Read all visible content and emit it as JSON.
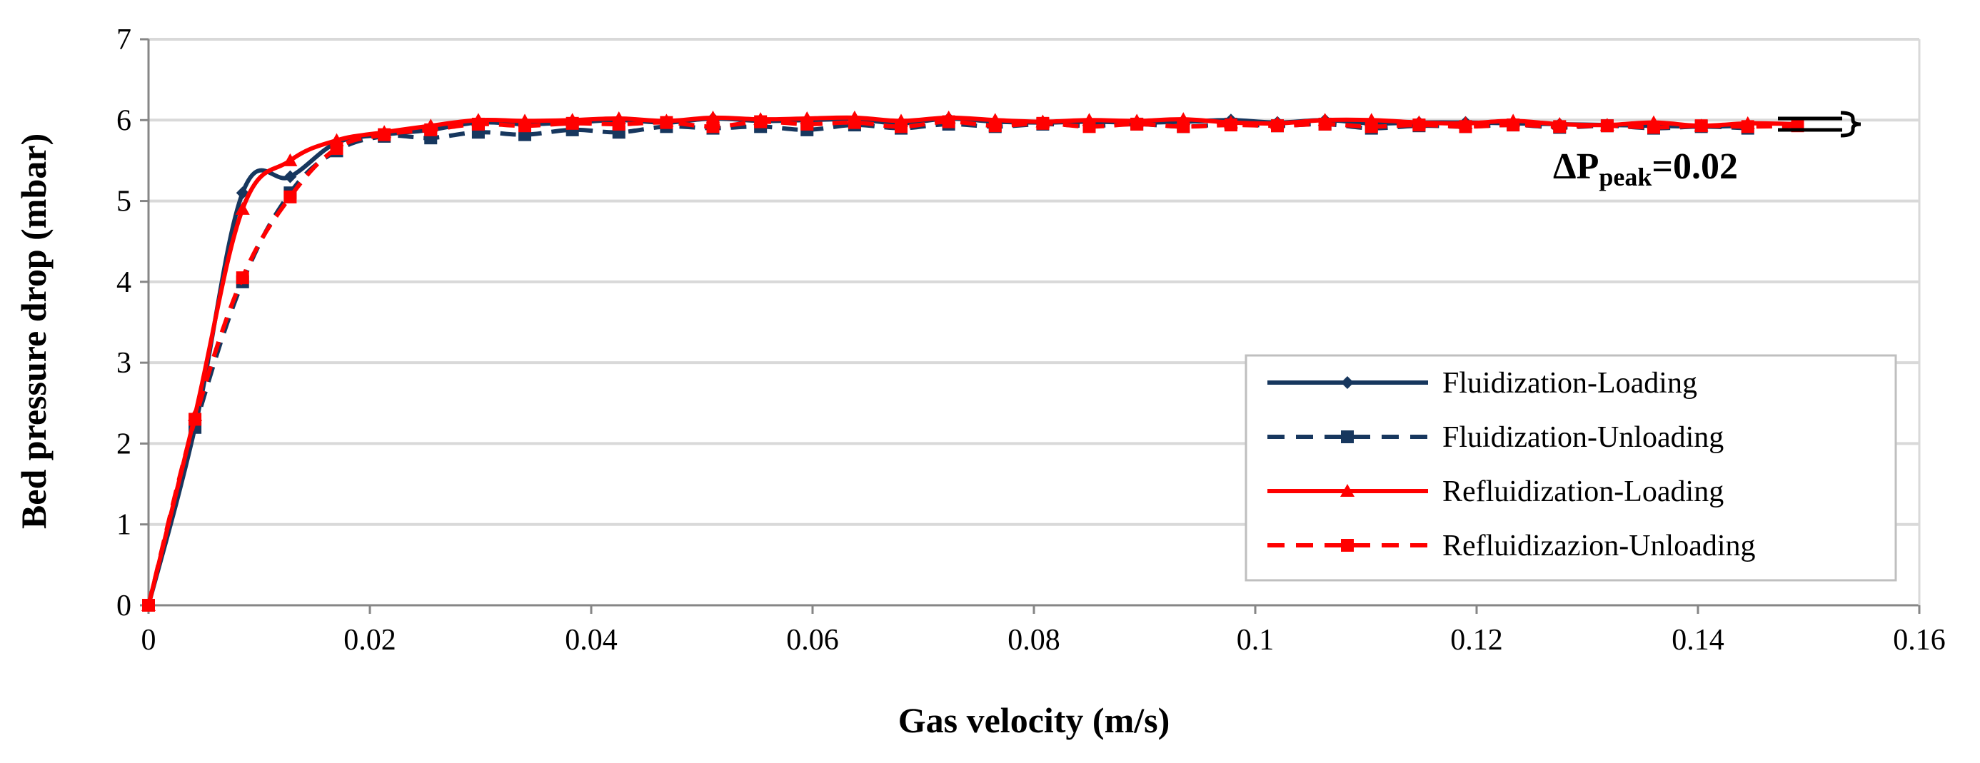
{
  "chart_data": {
    "type": "line",
    "title": "",
    "xlabel": "Gas velocity (m/s)",
    "ylabel": "Bed pressure drop (mbar)",
    "xlim": [
      0,
      0.16
    ],
    "ylim": [
      0,
      7
    ],
    "xticks": [
      "0",
      "0.02",
      "0.04",
      "0.06",
      "0.08",
      "0.1",
      "0.12",
      "0.14",
      "0.16"
    ],
    "xtick_values": [
      0,
      0.02,
      0.04,
      0.06,
      0.08,
      0.1,
      0.12,
      0.14,
      0.16
    ],
    "yticks": [
      "0",
      "1",
      "2",
      "3",
      "4",
      "5",
      "6",
      "7"
    ],
    "ytick_values": [
      0,
      1,
      2,
      3,
      4,
      5,
      6,
      7
    ],
    "grid": "horizontal",
    "legend_position": "bottom-right",
    "annotation": {
      "prefix": "ΔP",
      "subscript": "peak",
      "suffix": "=0.02"
    },
    "series": [
      {
        "name": "Fluidization-Loading",
        "color": "#17375e",
        "dash": "solid",
        "marker": "diamond",
        "x": [
          0,
          0.0042,
          0.0085,
          0.0128,
          0.017,
          0.0213,
          0.0255,
          0.0298,
          0.034,
          0.0383,
          0.0425,
          0.0468,
          0.051,
          0.0553,
          0.0595,
          0.0638,
          0.068,
          0.0723,
          0.0765,
          0.0808,
          0.085,
          0.0893,
          0.0935,
          0.0978,
          0.102,
          0.1063,
          0.1105,
          0.1148,
          0.119,
          0.1233,
          0.1275,
          0.1318,
          0.136,
          0.1403,
          0.1445
        ],
        "y": [
          0,
          2.2,
          5.1,
          5.3,
          5.72,
          5.82,
          5.88,
          5.97,
          5.95,
          5.97,
          6.0,
          5.97,
          6.02,
          5.99,
          6.0,
          6.01,
          5.96,
          6.02,
          5.98,
          5.97,
          5.98,
          5.97,
          5.98,
          6.0,
          5.97,
          6.0,
          5.96,
          5.97,
          5.97,
          5.96,
          5.95,
          5.94,
          5.93,
          5.92,
          5.93
        ]
      },
      {
        "name": "Fluidization-Unloading",
        "color": "#17375e",
        "dash": "dashed",
        "marker": "square",
        "x": [
          0,
          0.0042,
          0.0085,
          0.0128,
          0.017,
          0.0213,
          0.0255,
          0.0298,
          0.034,
          0.0383,
          0.0425,
          0.0468,
          0.051,
          0.0553,
          0.0595,
          0.0638,
          0.068,
          0.0723,
          0.0765,
          0.0808,
          0.085,
          0.0893,
          0.0935,
          0.0978,
          0.102,
          0.1063,
          0.1105,
          0.1148,
          0.119,
          0.1233,
          0.1275,
          0.1318,
          0.136,
          0.1403,
          0.1445
        ],
        "y": [
          0,
          2.2,
          4.0,
          5.1,
          5.62,
          5.8,
          5.78,
          5.85,
          5.82,
          5.88,
          5.85,
          5.92,
          5.9,
          5.92,
          5.88,
          5.94,
          5.9,
          5.95,
          5.92,
          5.95,
          5.93,
          5.95,
          5.92,
          5.95,
          5.93,
          5.95,
          5.9,
          5.93,
          5.92,
          5.94,
          5.91,
          5.93,
          5.9,
          5.92,
          5.9
        ]
      },
      {
        "name": "Refluidization-Loading",
        "color": "#ff0000",
        "dash": "solid",
        "marker": "triangle",
        "x": [
          0,
          0.0042,
          0.0085,
          0.0128,
          0.017,
          0.0213,
          0.0255,
          0.0298,
          0.034,
          0.0383,
          0.0425,
          0.0468,
          0.051,
          0.0553,
          0.0595,
          0.0638,
          0.068,
          0.0723,
          0.0765,
          0.0808,
          0.085,
          0.0893,
          0.0935,
          0.0978,
          0.102,
          0.1063,
          0.1105,
          0.1148,
          0.119,
          0.1233,
          0.1275,
          0.1318,
          0.136,
          0.1403,
          0.1445,
          0.149
        ],
        "y": [
          0,
          2.35,
          4.9,
          5.5,
          5.75,
          5.85,
          5.93,
          6.0,
          5.99,
          6.0,
          6.02,
          5.99,
          6.03,
          6.01,
          6.02,
          6.03,
          5.99,
          6.03,
          6.0,
          5.98,
          6.0,
          5.99,
          6.01,
          5.97,
          5.96,
          6.0,
          6.0,
          5.97,
          5.96,
          5.99,
          5.95,
          5.94,
          5.97,
          5.93,
          5.96,
          5.95
        ]
      },
      {
        "name": "Refluidizazion-Unloading",
        "color": "#ff0000",
        "dash": "dashed",
        "marker": "square",
        "x": [
          0,
          0.0042,
          0.0085,
          0.0128,
          0.017,
          0.0213,
          0.0255,
          0.0298,
          0.034,
          0.0383,
          0.0425,
          0.0468,
          0.051,
          0.0553,
          0.0595,
          0.0638,
          0.068,
          0.0723,
          0.0765,
          0.0808,
          0.085,
          0.0893,
          0.0935,
          0.0978,
          0.102,
          0.1063,
          0.1105,
          0.1148,
          0.119,
          0.1233,
          0.1275,
          0.1318,
          0.136,
          0.1403,
          0.1445,
          0.149
        ],
        "y": [
          0,
          2.3,
          4.05,
          5.05,
          5.65,
          5.82,
          5.88,
          5.95,
          5.93,
          5.96,
          5.95,
          5.97,
          5.92,
          5.98,
          5.95,
          5.97,
          5.92,
          5.98,
          5.93,
          5.96,
          5.92,
          5.95,
          5.92,
          5.94,
          5.93,
          5.95,
          5.92,
          5.94,
          5.92,
          5.94,
          5.92,
          5.93,
          5.91,
          5.93,
          5.92,
          5.93
        ]
      }
    ]
  }
}
